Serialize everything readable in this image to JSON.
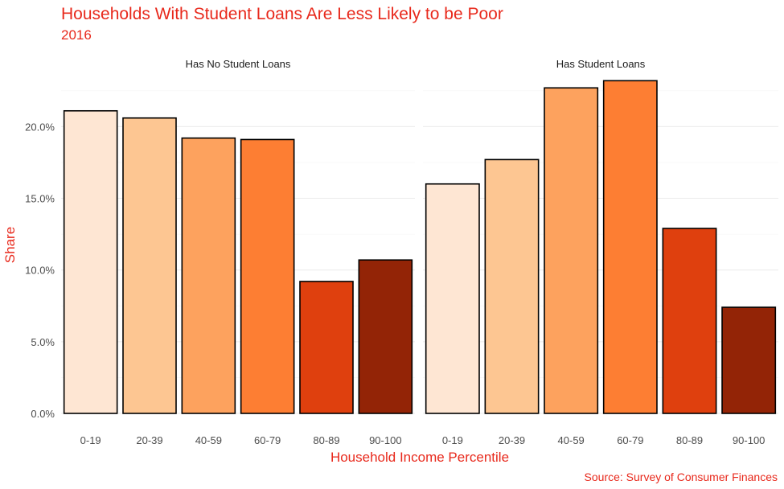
{
  "chart_data": {
    "type": "bar",
    "title": "Households With Student Loans Are Less Likely to be Poor",
    "subtitle": "2016",
    "xlabel": "Household Income Percentile",
    "ylabel": "Share",
    "caption": "Source: Survey of Consumer Finances",
    "ylim": [
      0,
      0.235
    ],
    "yticks": [
      0,
      0.05,
      0.1,
      0.15,
      0.2
    ],
    "ytick_labels": [
      "0.0%",
      "5.0%",
      "10.0%",
      "15.0%",
      "20.0%"
    ],
    "categories": [
      "0-19",
      "20-39",
      "40-59",
      "60-79",
      "80-89",
      "90-100"
    ],
    "colors": [
      "#fee6d3",
      "#fdc692",
      "#fda25e",
      "#fd7e33",
      "#df400e",
      "#932406"
    ],
    "panels": [
      {
        "name": "Has No Student Loans",
        "values": [
          0.211,
          0.206,
          0.192,
          0.191,
          0.092,
          0.107
        ]
      },
      {
        "name": "Has Student Loans",
        "values": [
          0.16,
          0.177,
          0.227,
          0.232,
          0.129,
          0.074
        ]
      }
    ],
    "grid": true,
    "legend": "none"
  }
}
